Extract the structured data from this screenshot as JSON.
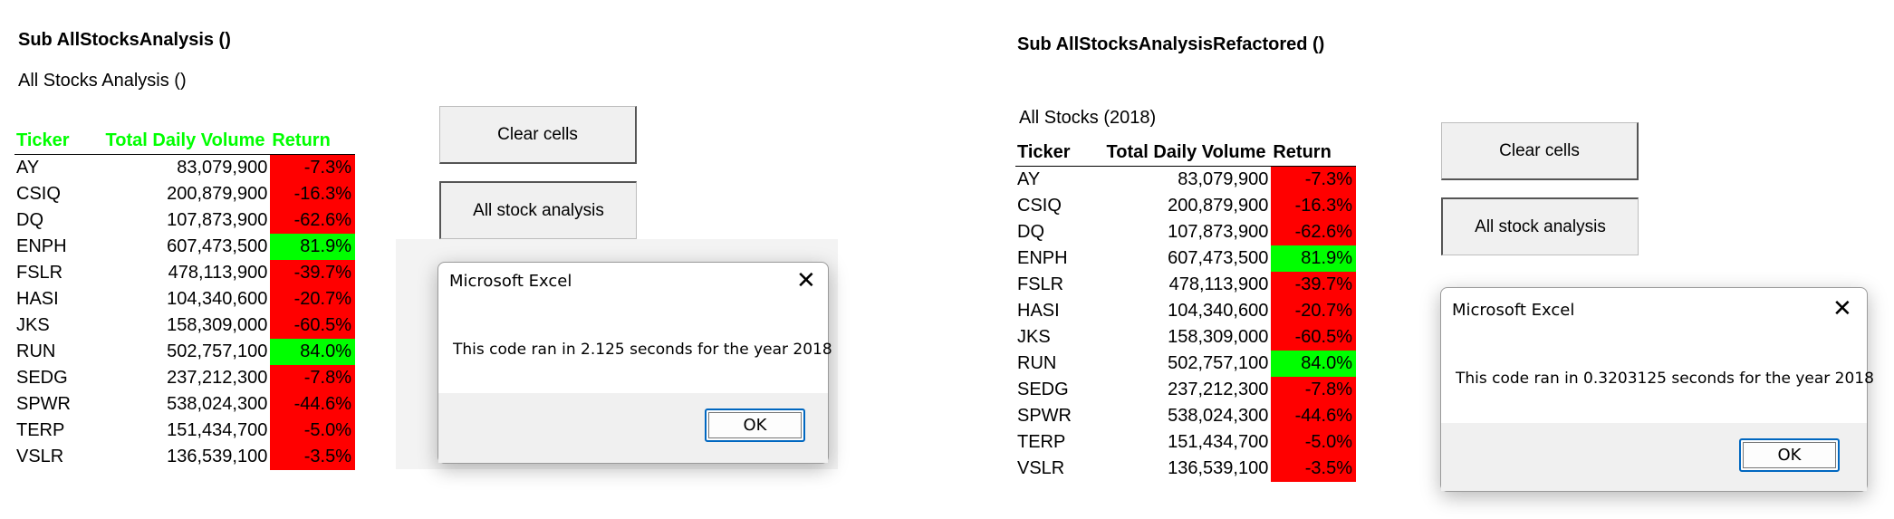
{
  "left": {
    "sub_title": "Sub AllStocksAnalysis ()",
    "sheet_title": "All Stocks Analysis ()",
    "headers": [
      "Ticker",
      "Total Daily Volume",
      "Return"
    ],
    "header_color": "#00ff00",
    "buttons": {
      "clear": "Clear cells",
      "analysis": "All stock analysis"
    },
    "dialog": {
      "title": "Microsoft Excel",
      "message": "This code ran in 2.125 seconds for the year 2018",
      "ok": "OK",
      "close_icon": "close-icon"
    }
  },
  "right": {
    "sub_title": "Sub AllStocksAnalysisRefactored ()",
    "sheet_title": "All Stocks (2018)",
    "headers": [
      "Ticker",
      "Total Daily Volume",
      "Return"
    ],
    "header_color": "#000000",
    "buttons": {
      "clear": "Clear cells",
      "analysis": "All stock analysis"
    },
    "dialog": {
      "title": "Microsoft Excel",
      "message": "This code ran in 0.3203125 seconds for the year 2018",
      "ok": "OK",
      "close_icon": "close-icon"
    }
  },
  "stocks": [
    {
      "ticker": "AY",
      "volume": "83,079,900",
      "return": "-7.3%",
      "positive": false
    },
    {
      "ticker": "CSIQ",
      "volume": "200,879,900",
      "return": "-16.3%",
      "positive": false
    },
    {
      "ticker": "DQ",
      "volume": "107,873,900",
      "return": "-62.6%",
      "positive": false
    },
    {
      "ticker": "ENPH",
      "volume": "607,473,500",
      "return": "81.9%",
      "positive": true
    },
    {
      "ticker": "FSLR",
      "volume": "478,113,900",
      "return": "-39.7%",
      "positive": false
    },
    {
      "ticker": "HASI",
      "volume": "104,340,600",
      "return": "-20.7%",
      "positive": false
    },
    {
      "ticker": "JKS",
      "volume": "158,309,000",
      "return": "-60.5%",
      "positive": false
    },
    {
      "ticker": "RUN",
      "volume": "502,757,100",
      "return": "84.0%",
      "positive": true
    },
    {
      "ticker": "SEDG",
      "volume": "237,212,300",
      "return": "-7.8%",
      "positive": false
    },
    {
      "ticker": "SPWR",
      "volume": "538,024,300",
      "return": "-44.6%",
      "positive": false
    },
    {
      "ticker": "TERP",
      "volume": "151,434,700",
      "return": "-5.0%",
      "positive": false
    },
    {
      "ticker": "VSLR",
      "volume": "136,539,100",
      "return": "-3.5%",
      "positive": false
    }
  ],
  "colors": {
    "positive": "#00ff00",
    "negative": "#ff0000"
  }
}
